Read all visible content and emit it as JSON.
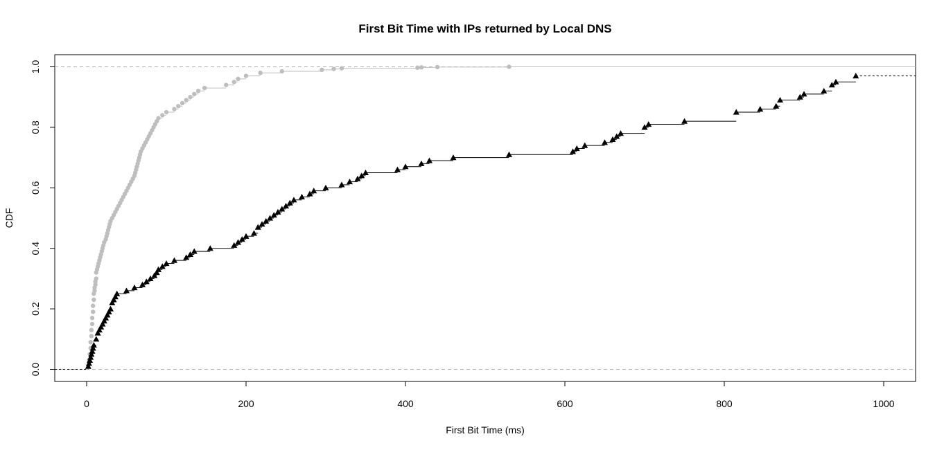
{
  "chart_data": {
    "type": "line",
    "title": "First Bit Time with IPs returned by Local DNS",
    "xlabel": "First Bit Time (ms)",
    "ylabel": "CDF",
    "xlim": [
      -40,
      1040
    ],
    "ylim": [
      -0.04,
      1.04
    ],
    "x_ticks": [
      0,
      200,
      400,
      600,
      800,
      1000
    ],
    "x_tick_labels": [
      "0",
      "200",
      "400",
      "600",
      "800",
      "1000"
    ],
    "y_ticks": [
      0.0,
      0.2,
      0.4,
      0.6,
      0.8,
      1.0
    ],
    "y_tick_labels": [
      "0.0",
      "0.2",
      "0.4",
      "0.6",
      "0.8",
      "1.0"
    ],
    "reference_lines_y": [
      0,
      1
    ],
    "grid": false,
    "legend": "none",
    "series": [
      {
        "marker": "circle",
        "color": "#bebebe",
        "x": [
          2,
          3,
          4,
          5,
          5,
          6,
          6,
          7,
          7,
          8,
          8,
          9,
          9,
          10,
          10,
          11,
          11,
          12,
          12,
          13,
          14,
          15,
          16,
          17,
          18,
          19,
          20,
          21,
          22,
          24,
          25,
          26,
          27,
          28,
          29,
          30,
          32,
          34,
          36,
          38,
          40,
          42,
          44,
          46,
          48,
          50,
          52,
          54,
          56,
          58,
          60,
          61,
          62,
          63,
          64,
          65,
          66,
          67,
          68,
          70,
          72,
          74,
          76,
          78,
          80,
          82,
          84,
          86,
          88,
          90,
          95,
          100,
          110,
          115,
          120,
          125,
          130,
          135,
          140,
          148,
          175,
          185,
          190,
          200,
          218,
          245,
          295,
          310,
          320,
          415,
          420,
          440,
          530
        ],
        "y": [
          0.01,
          0.03,
          0.05,
          0.07,
          0.09,
          0.11,
          0.13,
          0.15,
          0.17,
          0.19,
          0.21,
          0.23,
          0.25,
          0.26,
          0.27,
          0.28,
          0.29,
          0.3,
          0.32,
          0.33,
          0.34,
          0.35,
          0.36,
          0.37,
          0.38,
          0.39,
          0.4,
          0.41,
          0.42,
          0.43,
          0.44,
          0.45,
          0.46,
          0.47,
          0.48,
          0.49,
          0.5,
          0.51,
          0.52,
          0.53,
          0.54,
          0.55,
          0.56,
          0.57,
          0.58,
          0.59,
          0.6,
          0.61,
          0.62,
          0.63,
          0.64,
          0.65,
          0.66,
          0.67,
          0.68,
          0.69,
          0.7,
          0.71,
          0.72,
          0.73,
          0.74,
          0.75,
          0.76,
          0.77,
          0.78,
          0.79,
          0.8,
          0.81,
          0.82,
          0.83,
          0.84,
          0.85,
          0.86,
          0.87,
          0.88,
          0.89,
          0.9,
          0.91,
          0.92,
          0.93,
          0.94,
          0.95,
          0.96,
          0.97,
          0.98,
          0.985,
          0.99,
          0.993,
          0.995,
          0.997,
          0.998,
          0.999,
          1.0
        ]
      },
      {
        "marker": "triangle",
        "color": "#000000",
        "x": [
          2,
          3,
          4,
          5,
          6,
          7,
          8,
          9,
          12,
          14,
          16,
          18,
          20,
          22,
          24,
          26,
          28,
          30,
          32,
          34,
          36,
          38,
          50,
          60,
          70,
          75,
          80,
          85,
          88,
          90,
          95,
          100,
          110,
          125,
          130,
          135,
          155,
          185,
          190,
          195,
          200,
          210,
          215,
          220,
          225,
          230,
          235,
          240,
          245,
          250,
          255,
          260,
          270,
          280,
          285,
          300,
          320,
          330,
          340,
          345,
          350,
          390,
          400,
          420,
          430,
          460,
          530,
          610,
          615,
          625,
          650,
          660,
          665,
          670,
          700,
          705,
          750,
          815,
          845,
          865,
          870,
          895,
          900,
          925,
          935,
          940,
          965
        ],
        "y": [
          0.01,
          0.02,
          0.03,
          0.04,
          0.05,
          0.06,
          0.07,
          0.08,
          0.1,
          0.12,
          0.13,
          0.14,
          0.15,
          0.16,
          0.17,
          0.18,
          0.19,
          0.2,
          0.22,
          0.23,
          0.24,
          0.25,
          0.26,
          0.27,
          0.28,
          0.29,
          0.3,
          0.31,
          0.32,
          0.33,
          0.34,
          0.35,
          0.36,
          0.37,
          0.38,
          0.39,
          0.4,
          0.41,
          0.42,
          0.43,
          0.44,
          0.45,
          0.47,
          0.48,
          0.49,
          0.5,
          0.51,
          0.52,
          0.53,
          0.54,
          0.55,
          0.56,
          0.57,
          0.58,
          0.59,
          0.6,
          0.61,
          0.62,
          0.63,
          0.64,
          0.65,
          0.66,
          0.67,
          0.68,
          0.69,
          0.7,
          0.71,
          0.72,
          0.73,
          0.74,
          0.75,
          0.76,
          0.77,
          0.78,
          0.8,
          0.81,
          0.82,
          0.85,
          0.86,
          0.87,
          0.89,
          0.9,
          0.91,
          0.92,
          0.94,
          0.95,
          0.97
        ]
      }
    ]
  }
}
